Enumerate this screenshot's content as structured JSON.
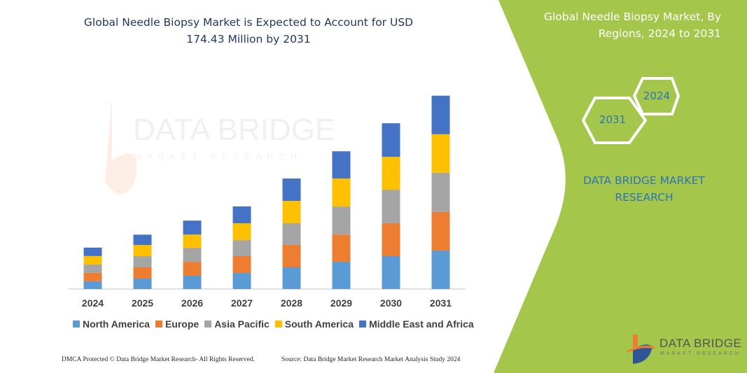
{
  "header": {
    "title": "Global Needle Biopsy Market is Expected to Account for USD 174.43 Million by 2031"
  },
  "side_panel": {
    "title": "Global Needle Biopsy Market, By Regions, 2024 to 2031",
    "hex_left": "2031",
    "hex_right": "2024",
    "brand_text": "DATA BRIDGE MARKET RESEARCH",
    "color": "#a4c64a"
  },
  "logo": {
    "name": "DATA BRIDGE",
    "sub": "MARKET RESEARCH"
  },
  "footer": {
    "left": "DMCA Protected © Data Bridge Market Research-  All Rights Reserved.",
    "right": "Source: Data Bridge Market Research  Market Analysis Study 2024"
  },
  "chart_data": {
    "type": "bar",
    "stacked": true,
    "title": "Global Needle Biopsy Market is Expected to Account for USD 174.43 Million by 2031",
    "xlabel": "",
    "ylabel": "",
    "y_axis_visible": false,
    "grid": false,
    "legend_position": "bottom",
    "categories": [
      "2024",
      "2025",
      "2026",
      "2027",
      "2028",
      "2029",
      "2030",
      "2031"
    ],
    "ylim": [
      0,
      174.43
    ],
    "series": [
      {
        "name": "North America",
        "color": "#5b9bd5",
        "values": [
          7.0,
          9.5,
          12.0,
          14.5,
          19.6,
          24.6,
          29.7,
          34.8
        ]
      },
      {
        "name": "Europe",
        "color": "#ed7d31",
        "values": [
          7.6,
          10.1,
          12.6,
          15.2,
          20.2,
          24.6,
          29.7,
          34.8
        ]
      },
      {
        "name": "Asia Pacific",
        "color": "#a5a5a5",
        "values": [
          7.6,
          10.1,
          12.6,
          14.5,
          19.6,
          25.3,
          30.3,
          35.4
        ]
      },
      {
        "name": "South America",
        "color": "#ffc000",
        "values": [
          7.6,
          10.1,
          12.0,
          15.2,
          20.2,
          25.3,
          29.7,
          34.8
        ]
      },
      {
        "name": "Middle East and Africa",
        "color": "#4472c4",
        "values": [
          7.6,
          9.3,
          12.6,
          15.2,
          20.2,
          24.6,
          30.3,
          34.8
        ]
      }
    ]
  }
}
